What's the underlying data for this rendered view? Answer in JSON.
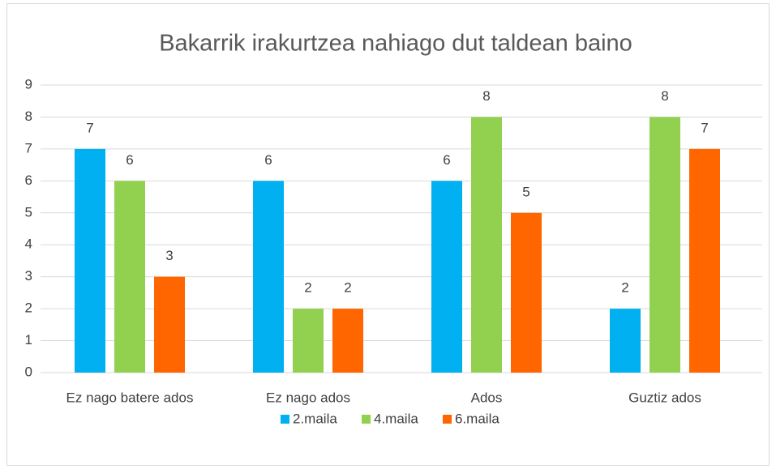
{
  "chart_data": {
    "type": "bar",
    "title": "Bakarrik irakurtzea nahiago dut taldean baino",
    "categories": [
      "Ez nago batere ados",
      "Ez nago ados",
      "Ados",
      "Guztiz ados"
    ],
    "series": [
      {
        "name": "2.maila",
        "color": "#00b0f0",
        "values": [
          7,
          6,
          6,
          2
        ]
      },
      {
        "name": "4.maila",
        "color": "#92d050",
        "values": [
          6,
          2,
          8,
          8
        ]
      },
      {
        "name": "6.maila",
        "color": "#ff6600",
        "values": [
          3,
          2,
          5,
          7
        ]
      }
    ],
    "ylim": [
      0,
      9
    ],
    "yticks": [
      0,
      1,
      2,
      3,
      4,
      5,
      6,
      7,
      8,
      9
    ],
    "grid": true,
    "legend": "bottom"
  }
}
